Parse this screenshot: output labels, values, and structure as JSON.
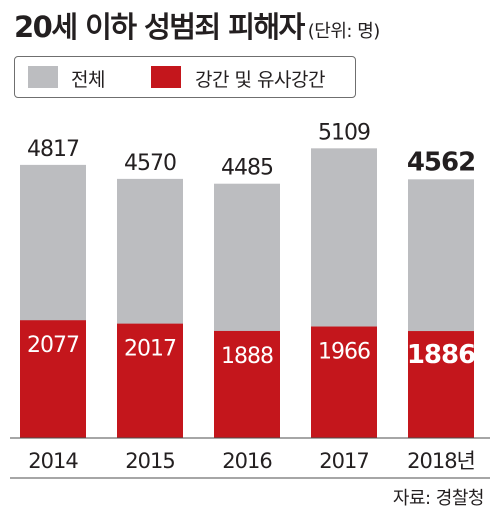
{
  "title": "20세 이하 성범죄 피해자",
  "unit_label": "(단위: 명)",
  "source": "자료: 경찰청",
  "colors": {
    "total": "#bcbdc0",
    "rape": "#c4161c",
    "text": "#231f20",
    "white": "#ffffff",
    "axis": "#4d4d4d"
  },
  "chart_data": {
    "type": "bar",
    "stacked": false,
    "categories": [
      "2014",
      "2015",
      "2016",
      "2017",
      "2018년"
    ],
    "series": [
      {
        "name": "전체",
        "values": [
          4817,
          4570,
          4485,
          5109,
          4562
        ]
      },
      {
        "name": "강간 및 유사강간",
        "values": [
          2077,
          2017,
          1888,
          1966,
          1886
        ]
      }
    ],
    "legend_position": "top-left",
    "grid": false,
    "emphasized_category": "2018년"
  }
}
